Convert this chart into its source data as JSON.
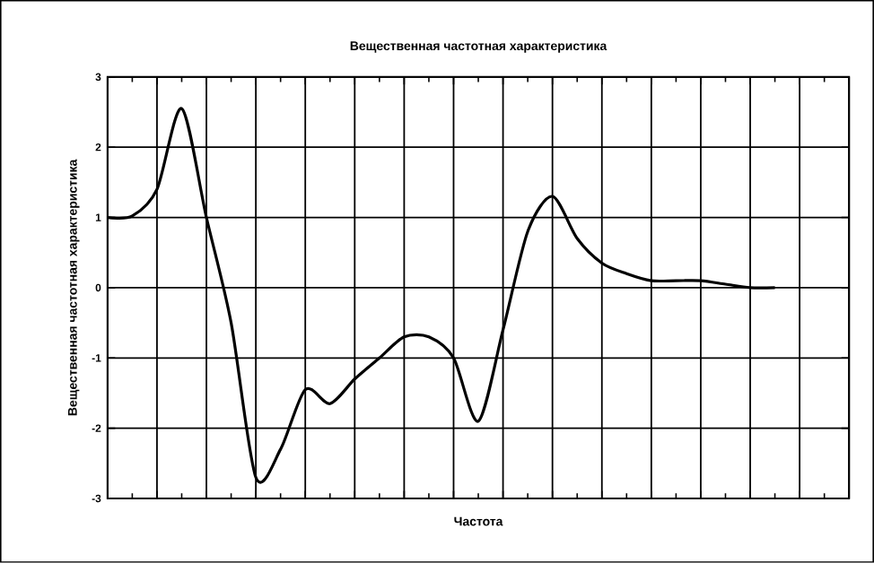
{
  "chart_data": {
    "type": "line",
    "title": "Вещественная частотная характеристика",
    "xlabel": "Частота",
    "ylabel": "Вещественная частотная характеристика",
    "categories": [
      null,
      null,
      null,
      null,
      null,
      null,
      null,
      null,
      null,
      null,
      null,
      null,
      null,
      null,
      null,
      null,
      null,
      null,
      null,
      null,
      null,
      null,
      null,
      null,
      null,
      null,
      null,
      null,
      null,
      null,
      null
    ],
    "values": [
      1.0,
      1.02,
      1.4,
      2.55,
      1.0,
      -0.5,
      -2.7,
      -2.3,
      -1.45,
      -1.65,
      -1.3,
      -1.0,
      -0.7,
      -0.7,
      -1.0,
      -1.9,
      -0.6,
      0.8,
      1.3,
      0.7,
      0.35,
      0.2,
      0.1,
      0.1,
      0.1,
      0.05,
      0.0,
      0.0,
      null,
      null,
      null
    ],
    "color": "#000000",
    "ylim": [
      -3,
      3
    ],
    "yticks": [
      -3,
      -2,
      -1,
      0,
      1,
      2,
      3
    ],
    "grid": true
  }
}
